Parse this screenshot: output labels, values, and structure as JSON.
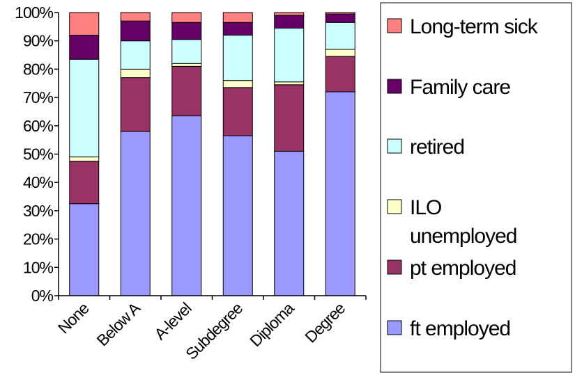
{
  "chart_data": {
    "type": "bar",
    "stacked": true,
    "percent_stacked": true,
    "categories": [
      "None",
      "Below A",
      "A-level",
      "Subdegree",
      "Diploma",
      "Degree"
    ],
    "y_ticks": [
      "0%",
      "10%",
      "20%",
      "30%",
      "40%",
      "50%",
      "60%",
      "70%",
      "80%",
      "90%",
      "100%"
    ],
    "ylim": [
      0,
      100
    ],
    "grid": false,
    "legend_position": "right",
    "series": [
      {
        "name": "ft employed",
        "color": "#9999ff",
        "values": [
          32.5,
          58,
          63.5,
          56.5,
          51,
          72
        ]
      },
      {
        "name": "pt employed",
        "color": "#993366",
        "values": [
          15,
          19,
          17.5,
          17,
          23.5,
          12.5
        ]
      },
      {
        "name": "ILO unemployed",
        "color": "#ffffcc",
        "values": [
          1.5,
          3,
          1,
          2.5,
          1,
          2.5
        ]
      },
      {
        "name": "retired",
        "color": "#ccffff",
        "values": [
          34.5,
          10,
          8.5,
          16,
          19,
          9.5
        ]
      },
      {
        "name": "Family care",
        "color": "#660066",
        "values": [
          8.5,
          7,
          6,
          4.5,
          4.5,
          3
        ]
      },
      {
        "name": "Long-term sick",
        "color": "#ff8080",
        "values": [
          8,
          3,
          3.5,
          3.5,
          1,
          0.5
        ]
      }
    ],
    "legend": [
      {
        "lines": [
          "Long-term sick"
        ],
        "color": "#ff8080"
      },
      {
        "lines": [
          "Family care"
        ],
        "color": "#660066"
      },
      {
        "lines": [
          "retired"
        ],
        "color": "#ccffff"
      },
      {
        "lines": [
          "ILO",
          "unemployed"
        ],
        "color": "#ffffcc"
      },
      {
        "lines": [
          "pt employed"
        ],
        "color": "#993366"
      },
      {
        "lines": [
          "ft employed"
        ],
        "color": "#9999ff"
      }
    ]
  }
}
